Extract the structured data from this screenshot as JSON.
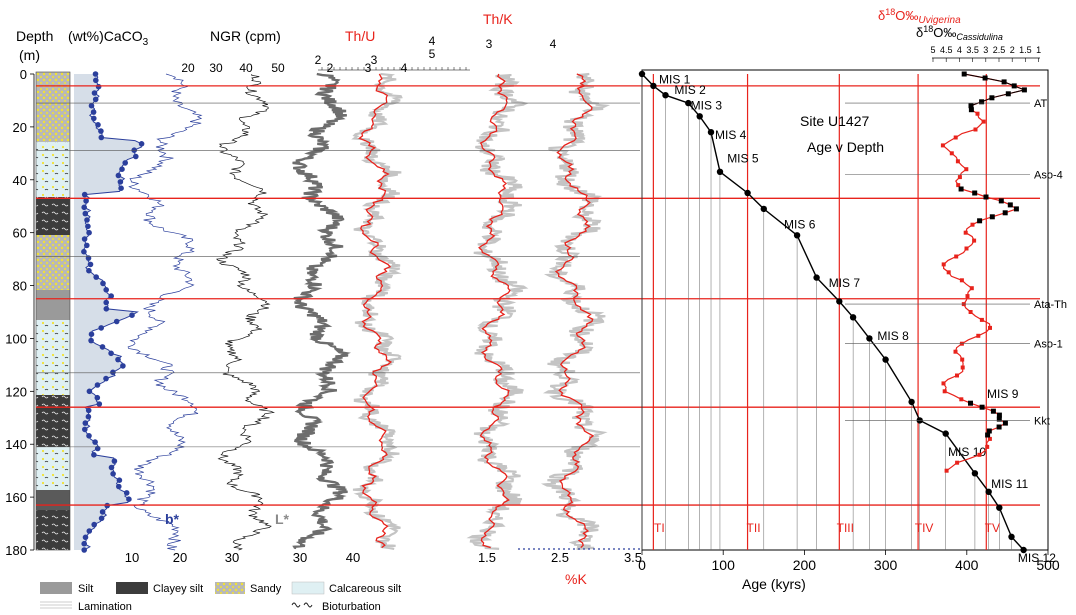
{
  "colors": {
    "black": "#000000",
    "red": "#e8231c",
    "blue": "#2b3f9c",
    "grey": "#7a7a7a",
    "lightgrey": "#c4c4c4",
    "shade": "#b5c3d6",
    "sand_dot": "#f2e233"
  },
  "headers": {
    "depth": "Depth",
    "depth_unit": "(m)",
    "caco3_prefix": "(wt%)CaCO",
    "caco3_sub": "3",
    "ngr": "NGR (cpm)",
    "thu": "Th/U",
    "thk": "Th/K",
    "d18o_uvig_symbol": "δ",
    "d18o_uvig_sup": "18",
    "d18o_uvig_main": "O‰",
    "d18o_uvig_sub": "Uvigerina",
    "d18o_cass_symbol": "δ",
    "d18o_cass_sup": "18",
    "d18o_cass_main": "O‰",
    "d18o_cass_sub": "Cassidulina",
    "bstar": "b*",
    "lstar": "L*",
    "pct_k": "%K",
    "site": "Site U1427",
    "subtitle": "Age v Depth",
    "age_axis": "Age (kyrs)"
  },
  "legend": {
    "silt": "Silt",
    "clayey_silt": "Clayey silt",
    "sandy": "Sandy",
    "calcareous_silt": "Calcareous silt",
    "lamination": "Lamination",
    "bioturbation": "Bioturbation"
  },
  "chart_data": [
    {
      "type": "line",
      "panel": "depth-profiles",
      "y_axis": {
        "label": "Depth (m)",
        "ticks": [
          0,
          20,
          40,
          60,
          80,
          100,
          120,
          140,
          160,
          180
        ],
        "ylim": [
          0,
          180
        ],
        "inverted": true
      },
      "caco3_ticks": [
        "20",
        "30",
        "40",
        "50"
      ],
      "b_ticks": [
        "10",
        "20",
        "30"
      ],
      "ngr_ticks": [
        "2",
        "3",
        "4",
        "5"
      ],
      "l_ticks": [
        "30",
        "40"
      ],
      "thu_ticks": [
        "2",
        "3",
        "4"
      ],
      "thk_ticks": [
        "3",
        "4"
      ],
      "pctk_ticks": [
        "1.5",
        "2.5",
        "3.5"
      ],
      "red_horizons_depth_m": [
        4.5,
        47,
        85,
        126,
        163
      ],
      "grey_horizons_depth_m": [
        11,
        29,
        69,
        113,
        141
      ]
    },
    {
      "type": "scatter",
      "panel": "age-depth",
      "xlabel": "Age (kyrs)",
      "x_ticks": [
        0,
        100,
        200,
        300,
        400,
        500
      ],
      "xlim": [
        0,
        500
      ],
      "ylim": [
        0,
        180
      ],
      "age_depth_points": [
        [
          0,
          0
        ],
        [
          14,
          4.5
        ],
        [
          29,
          8
        ],
        [
          57,
          11
        ],
        [
          71,
          16
        ],
        [
          85,
          22
        ],
        [
          96,
          37
        ],
        [
          130,
          45
        ],
        [
          150,
          51
        ],
        [
          191,
          61
        ],
        [
          215,
          77
        ],
        [
          243,
          86
        ],
        [
          260,
          92
        ],
        [
          280,
          100
        ],
        [
          300,
          108
        ],
        [
          332,
          124
        ],
        [
          342,
          131
        ],
        [
          374,
          136
        ],
        [
          410,
          151
        ],
        [
          427,
          158
        ],
        [
          440,
          164
        ],
        [
          455,
          175
        ],
        [
          470,
          180
        ]
      ],
      "mis_labels": [
        {
          "label": "MIS 1",
          "age": 16,
          "depth": 2
        },
        {
          "label": "MIS 2",
          "age": 35,
          "depth": 6
        },
        {
          "label": "MIS 3",
          "age": 55,
          "depth": 12
        },
        {
          "label": "MIS 4",
          "age": 85,
          "depth": 23
        },
        {
          "label": "MIS 5",
          "age": 100,
          "depth": 32
        },
        {
          "label": "MIS 6",
          "age": 170,
          "depth": 57
        },
        {
          "label": "MIS 7",
          "age": 225,
          "depth": 79
        },
        {
          "label": "MIS 8",
          "age": 285,
          "depth": 99
        },
        {
          "label": "MIS 9",
          "age": 420,
          "depth": 121
        },
        {
          "label": "MIS 10",
          "age": 372,
          "depth": 143
        },
        {
          "label": "MIS 11",
          "age": 425,
          "depth": 155
        },
        {
          "label": "MIS 12",
          "age": 458,
          "depth": 183
        }
      ],
      "terminations": [
        {
          "label": "TI",
          "age": 14
        },
        {
          "label": "TII",
          "age": 130
        },
        {
          "label": "TIII",
          "age": 243
        },
        {
          "label": "TIV",
          "age": 340
        },
        {
          "label": "TV",
          "age": 424
        }
      ],
      "tephra": [
        {
          "label": "AT",
          "depth": 11
        },
        {
          "label": "Aso-4",
          "depth": 38
        },
        {
          "label": "Ata-Th",
          "depth": 87
        },
        {
          "label": "Aso-1",
          "depth": 102
        },
        {
          "label": "Kkt",
          "depth": 131
        }
      ],
      "d18o_axis_ticks": [
        "5",
        "4.5",
        "4",
        "3.5",
        "3",
        "2.5",
        "2",
        "1.5",
        "1"
      ]
    }
  ]
}
